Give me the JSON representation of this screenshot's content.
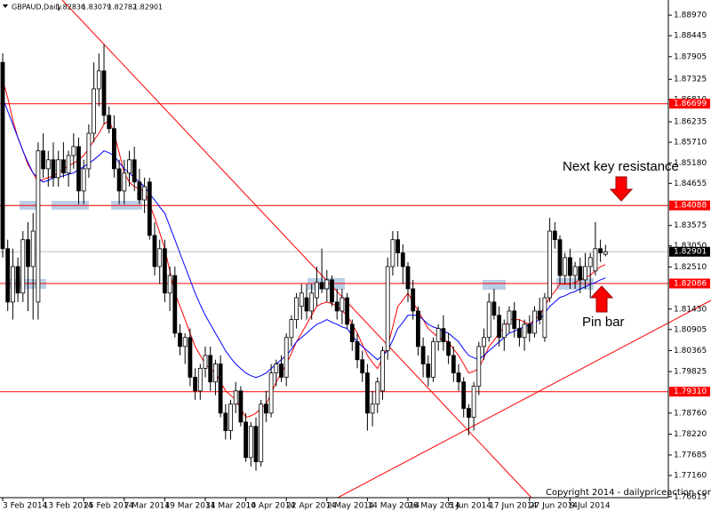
{
  "chart_data": {
    "type": "candlestick",
    "title": "GBPAUD,Daily",
    "categories": [
      "3 Feb 2014",
      null,
      null,
      null,
      null,
      null,
      null,
      null,
      "13 Feb 2014",
      null,
      null,
      null,
      null,
      null,
      null,
      null,
      "25 Feb 2014",
      null,
      null,
      null,
      null,
      null,
      null,
      null,
      "7 Mar 2014",
      null,
      null,
      null,
      null,
      null,
      null,
      null,
      "19 Mar 2014",
      null,
      null,
      null,
      null,
      null,
      null,
      null,
      "31 Mar 2014",
      null,
      null,
      null,
      null,
      null,
      null,
      null,
      "10 Apr 2014",
      null,
      null,
      null,
      null,
      null,
      null,
      null,
      "22 Apr 2014",
      null,
      null,
      null,
      null,
      null,
      null,
      null,
      "2 May 2014",
      null,
      null,
      null,
      null,
      null,
      null,
      null,
      "14 May 2014",
      null,
      null,
      null,
      null,
      null,
      null,
      null,
      "26 May 2014",
      null,
      null,
      null,
      null,
      null,
      null,
      null,
      "5 Jun 2014",
      null,
      null,
      null,
      null,
      null,
      null,
      null,
      "17 Jun 2014",
      null,
      null,
      null,
      null,
      null,
      null,
      null,
      "27 Jun 2014",
      null,
      null,
      null,
      null,
      null,
      null,
      null,
      "9 Jul 2014",
      null,
      null,
      null,
      null,
      null,
      null,
      null
    ],
    "candles": [
      [
        1.8776,
        1.8799,
        1.8275,
        1.8298
      ],
      [
        1.8298,
        1.8321,
        1.8138,
        1.8161
      ],
      [
        1.8161,
        1.8298,
        1.8116,
        1.8252
      ],
      [
        1.8252,
        1.8275,
        1.8161,
        1.8184
      ],
      [
        1.8184,
        1.8343,
        1.8161,
        1.8321
      ],
      [
        1.8321,
        1.8366,
        1.8138,
        1.8252
      ],
      [
        1.8252,
        1.8389,
        1.8116,
        1.8343
      ],
      [
        1.8161,
        1.8571,
        1.8116,
        1.8549
      ],
      [
        1.8549,
        1.8594,
        1.848,
        1.8503
      ],
      [
        1.8503,
        1.8549,
        1.8457,
        1.8526
      ],
      [
        1.8526,
        1.8571,
        1.8457,
        1.848
      ],
      [
        1.848,
        1.8549,
        1.8457,
        1.8526
      ],
      [
        1.8526,
        1.8571,
        1.848,
        1.8492
      ],
      [
        1.8492,
        1.8549,
        1.8457,
        1.8537
      ],
      [
        1.8537,
        1.8594,
        1.8503,
        1.856
      ],
      [
        1.856,
        1.8583,
        1.8412,
        1.8446
      ],
      [
        1.8446,
        1.8526,
        1.8412,
        1.8503
      ],
      [
        1.8503,
        1.8617,
        1.848,
        1.8594
      ],
      [
        1.8594,
        1.8776,
        1.8571,
        1.8708
      ],
      [
        1.8708,
        1.8799,
        1.8663,
        1.8754
      ],
      [
        1.8754,
        1.8822,
        1.8617,
        1.864
      ],
      [
        1.864,
        1.8663,
        1.8594,
        1.8606
      ],
      [
        1.8606,
        1.864,
        1.848,
        1.8503
      ],
      [
        1.8503,
        1.8526,
        1.8412,
        1.8446
      ],
      [
        1.8446,
        1.8526,
        1.8412,
        1.8492
      ],
      [
        1.8492,
        1.8549,
        1.8457,
        1.8526
      ],
      [
        1.8526,
        1.856,
        1.8446,
        1.8469
      ],
      [
        1.8469,
        1.8503,
        1.8412,
        1.8423
      ],
      [
        1.8423,
        1.848,
        1.8389,
        1.8457
      ],
      [
        1.8469,
        1.848,
        1.8321,
        1.8332
      ],
      [
        1.8332,
        1.8366,
        1.8229,
        1.8252
      ],
      [
        1.8252,
        1.8321,
        1.8207,
        1.8298
      ],
      [
        1.8298,
        1.8321,
        1.8161,
        1.8184
      ],
      [
        1.8184,
        1.8252,
        1.8138,
        1.8229
      ],
      [
        1.8229,
        1.8252,
        1.807,
        1.8081
      ],
      [
        1.8081,
        1.8104,
        1.8024,
        1.8047
      ],
      [
        1.8047,
        1.8081,
        1.8002,
        1.807
      ],
      [
        1.807,
        1.8093,
        1.7945,
        1.7968
      ],
      [
        1.7968,
        1.7991,
        1.791,
        1.7933
      ],
      [
        1.7933,
        1.8002,
        1.791,
        1.7991
      ],
      [
        1.7991,
        1.8047,
        1.7968,
        1.8024
      ],
      [
        1.8024,
        1.8047,
        1.7933,
        1.7956
      ],
      [
        1.7956,
        1.8013,
        1.7922,
        1.8002
      ],
      [
        1.8002,
        1.8024,
        1.7865,
        1.7876
      ],
      [
        1.7876,
        1.7899,
        1.7808,
        1.7831
      ],
      [
        1.7831,
        1.791,
        1.7808,
        1.7899
      ],
      [
        1.7899,
        1.7956,
        1.7876,
        1.7933
      ],
      [
        1.7933,
        1.7945,
        1.7842,
        1.7853
      ],
      [
        1.7853,
        1.7876,
        1.7751,
        1.7762
      ],
      [
        1.7762,
        1.7853,
        1.7739,
        1.7842
      ],
      [
        1.7842,
        1.7865,
        1.7728,
        1.7751
      ],
      [
        1.7751,
        1.791,
        1.7739,
        1.7899
      ],
      [
        1.7899,
        1.7933,
        1.7853,
        1.7876
      ],
      [
        1.7876,
        1.8002,
        1.7865,
        1.7979
      ],
      [
        1.7979,
        1.8013,
        1.7945,
        1.8002
      ],
      [
        1.8002,
        1.8024,
        1.7956,
        1.7968
      ],
      [
        1.7968,
        1.8081,
        1.7945,
        1.807
      ],
      [
        1.807,
        1.8127,
        1.8047,
        1.8116
      ],
      [
        1.8116,
        1.8184,
        1.8093,
        1.8172
      ],
      [
        1.815,
        1.8207,
        1.8116,
        1.8184
      ],
      [
        1.8172,
        1.8207,
        1.8116,
        1.8138
      ],
      [
        1.8138,
        1.8207,
        1.8116,
        1.8184
      ],
      [
        1.8172,
        1.8252,
        1.815,
        1.8211
      ],
      [
        1.8211,
        1.8298,
        1.8184,
        1.8195
      ],
      [
        1.8195,
        1.8243,
        1.8161,
        1.8218
      ],
      [
        1.8218,
        1.8229,
        1.815,
        1.8161
      ],
      [
        1.8161,
        1.8195,
        1.8116,
        1.8138
      ],
      [
        1.8138,
        1.8195,
        1.8104,
        1.8172
      ],
      [
        1.8172,
        1.8184,
        1.8093,
        1.8104
      ],
      [
        1.8104,
        1.8116,
        1.8036,
        1.8059
      ],
      [
        1.8059,
        1.8081,
        1.7991,
        1.8013
      ],
      [
        1.8013,
        1.8036,
        1.7956,
        1.7979
      ],
      [
        1.7979,
        1.8002,
        1.7831,
        1.7876
      ],
      [
        1.7876,
        1.7933,
        1.7842,
        1.7899
      ],
      [
        1.7899,
        1.7968,
        1.7876,
        1.7956
      ],
      [
        1.7933,
        1.8047,
        1.791,
        1.8036
      ],
      [
        1.8036,
        1.8275,
        1.8013,
        1.8252
      ],
      [
        1.8252,
        1.8343,
        1.8229,
        1.8321
      ],
      [
        1.8321,
        1.8343,
        1.8252,
        1.8287
      ],
      [
        1.8287,
        1.8309,
        1.8207,
        1.8252
      ],
      [
        1.8252,
        1.8264,
        1.8161,
        1.8195
      ],
      [
        1.8195,
        1.8218,
        1.8116,
        1.8138
      ],
      [
        1.8138,
        1.815,
        1.8024,
        1.8047
      ],
      [
        1.8047,
        1.807,
        1.7968,
        1.8002
      ],
      [
        1.8002,
        1.8024,
        1.7945,
        1.7968
      ],
      [
        1.7968,
        1.807,
        1.7956,
        1.8059
      ],
      [
        1.8059,
        1.8104,
        1.8036,
        1.8093
      ],
      [
        1.8093,
        1.8127,
        1.8036,
        1.8059
      ],
      [
        1.8059,
        1.8081,
        1.8002,
        1.8024
      ],
      [
        1.8024,
        1.8047,
        1.7956,
        1.7979
      ],
      [
        1.7979,
        1.8002,
        1.7933,
        1.7956
      ],
      [
        1.7956,
        1.7968,
        1.7865,
        1.7888
      ],
      [
        1.7888,
        1.7899,
        1.7819,
        1.7865
      ],
      [
        1.7865,
        1.7956,
        1.7831,
        1.7945
      ],
      [
        1.7945,
        1.8059,
        1.7922,
        1.8047
      ],
      [
        1.8047,
        1.8093,
        1.8013,
        1.807
      ],
      [
        1.807,
        1.8184,
        1.8059,
        1.8161
      ],
      [
        1.8161,
        1.8195,
        1.8116,
        1.8127
      ],
      [
        1.8127,
        1.815,
        1.8047,
        1.807
      ],
      [
        1.807,
        1.8116,
        1.8036,
        1.8104
      ],
      [
        1.8104,
        1.815,
        1.8081,
        1.8138
      ],
      [
        1.8138,
        1.8161,
        1.807,
        1.8093
      ],
      [
        1.8093,
        1.8116,
        1.8047,
        1.807
      ],
      [
        1.807,
        1.8116,
        1.8036,
        1.8104
      ],
      [
        1.8104,
        1.8127,
        1.8059,
        1.8081
      ],
      [
        1.8081,
        1.815,
        1.807,
        1.8138
      ],
      [
        1.8138,
        1.8172,
        1.8104,
        1.8116
      ],
      [
        1.807,
        1.8184,
        1.8059,
        1.8172
      ],
      [
        1.8172,
        1.8377,
        1.8161,
        1.8343
      ],
      [
        1.8343,
        1.8366,
        1.8298,
        1.8321
      ],
      [
        1.8321,
        1.8332,
        1.8207,
        1.8229
      ],
      [
        1.8229,
        1.8287,
        1.8207,
        1.8275
      ],
      [
        1.8275,
        1.8298,
        1.8195,
        1.8229
      ],
      [
        1.8229,
        1.8264,
        1.8195,
        1.8252
      ],
      [
        1.8252,
        1.8275,
        1.8184,
        1.8218
      ],
      [
        1.8218,
        1.8287,
        1.8195,
        1.8252
      ],
      [
        1.8252,
        1.8287,
        1.8172,
        1.8275
      ],
      [
        1.8241,
        1.8366,
        1.8229,
        1.8298
      ],
      [
        1.8298,
        1.8321,
        1.8264,
        1.8287
      ],
      [
        1.82836,
        1.83079,
        1.82782,
        1.82901
      ]
    ],
    "series": [
      {
        "color": "#ff0000",
        "values": [
          1.8731,
          1.8685,
          1.8628,
          1.8583,
          1.8549,
          1.8514,
          1.8492,
          1.8469,
          1.8476,
          1.848,
          1.8485,
          1.8492,
          1.8503,
          1.851,
          1.8517,
          1.8526,
          1.8537,
          1.8555,
          1.8576,
          1.8594,
          1.8617,
          1.8628,
          1.8594,
          1.8544,
          1.8492,
          1.8469,
          1.8457,
          1.8451,
          1.8446,
          1.8412,
          1.8378,
          1.8339,
          1.8298,
          1.8241,
          1.8184,
          1.815,
          1.8116,
          1.8081,
          1.8047,
          1.8024,
          1.8002,
          1.799,
          1.7979,
          1.7956,
          1.7933,
          1.7922,
          1.791,
          1.7888,
          1.7865,
          1.7869,
          1.7876,
          1.7888,
          1.7899,
          1.7926,
          1.7956,
          1.7979,
          1.8002,
          1.8029,
          1.8059,
          1.8081,
          1.8104,
          1.8127,
          1.815,
          1.8157,
          1.8161,
          1.8157,
          1.815,
          1.8138,
          1.8127,
          1.8104,
          1.8081,
          1.8052,
          1.8024,
          1.8006,
          1.799,
          1.8018,
          1.8047,
          1.8097,
          1.815,
          1.8166,
          1.8184,
          1.8161,
          1.8138,
          1.8116,
          1.8093,
          1.8081,
          1.807,
          1.8063,
          1.8059,
          1.804,
          1.8024,
          1.8002,
          1.7979,
          1.7983,
          1.799,
          1.8018,
          1.8047,
          1.8063,
          1.8081,
          1.8097,
          1.8116,
          1.8116,
          1.8116,
          1.8109,
          1.8104,
          1.8116,
          1.8127,
          1.815,
          1.8173,
          1.8188,
          1.8207,
          1.8207,
          1.8207,
          1.8211,
          1.8218,
          1.8223,
          1.823,
          1.8241,
          1.8252,
          1.8257
        ]
      },
      {
        "color": "#0000ff",
        "values": [
          1.8685,
          1.8651,
          1.8617,
          1.8583,
          1.8549,
          1.8519,
          1.8492,
          1.848,
          1.8469,
          1.8473,
          1.848,
          1.8482,
          1.8485,
          1.8489,
          1.8492,
          1.8501,
          1.8508,
          1.8517,
          1.8526,
          1.8537,
          1.8549,
          1.8544,
          1.8537,
          1.8519,
          1.8503,
          1.8492,
          1.848,
          1.8469,
          1.8457,
          1.8439,
          1.8423,
          1.8405,
          1.8389,
          1.8355,
          1.8321,
          1.8286,
          1.8252,
          1.8218,
          1.8184,
          1.8154,
          1.8127,
          1.8104,
          1.8081,
          1.8059,
          1.8036,
          1.8018,
          1.8002,
          1.799,
          1.7979,
          1.7972,
          1.7967,
          1.7972,
          1.7979,
          1.799,
          1.8002,
          1.8013,
          1.8024,
          1.804,
          1.8059,
          1.807,
          1.8081,
          1.8093,
          1.8104,
          1.8109,
          1.8116,
          1.8109,
          1.8104,
          1.8097,
          1.8093,
          1.8075,
          1.8059,
          1.8047,
          1.8036,
          1.8024,
          1.8013,
          1.8024,
          1.8036,
          1.8063,
          1.8093,
          1.8109,
          1.8127,
          1.8127,
          1.8127,
          1.8116,
          1.8104,
          1.8097,
          1.8093,
          1.8086,
          1.8081,
          1.807,
          1.8059,
          1.804,
          1.8024,
          1.8018,
          1.8013,
          1.8024,
          1.8036,
          1.8047,
          1.8059,
          1.807,
          1.8081,
          1.8086,
          1.8093,
          1.8097,
          1.8104,
          1.8109,
          1.8116,
          1.8132,
          1.815,
          1.8161,
          1.8173,
          1.8177,
          1.8184,
          1.8188,
          1.8195,
          1.82,
          1.8207,
          1.8211,
          1.8218,
          1.8223
        ]
      }
    ],
    "ylim": [
      1.7659,
      1.8936
    ],
    "yticks": [
      {
        "value": 1.8897,
        "label": "1.88970"
      },
      {
        "value": 1.88445,
        "label": "1.88445"
      },
      {
        "value": 1.87905,
        "label": "1.87905"
      },
      {
        "value": 1.87325,
        "label": "1.87325"
      },
      {
        "value": 1.8681,
        "label": "1.86810"
      },
      {
        "value": 1.86235,
        "label": "1.86235"
      },
      {
        "value": 1.8571,
        "label": "1.85710"
      },
      {
        "value": 1.8518,
        "label": "1.85180"
      },
      {
        "value": 1.84655,
        "label": "1.84655"
      },
      {
        "value": 1.83575,
        "label": "1.83575"
      },
      {
        "value": 1.8305,
        "label": "1.83050"
      },
      {
        "value": 1.8251,
        "label": "1.82510"
      },
      {
        "value": 1.8143,
        "label": "1.81430"
      },
      {
        "value": 1.80905,
        "label": "1.80905"
      },
      {
        "value": 1.80365,
        "label": "1.80365"
      },
      {
        "value": 1.79825,
        "label": "1.79825"
      },
      {
        "value": 1.7876,
        "label": "1.78760"
      },
      {
        "value": 1.7822,
        "label": "1.78220"
      },
      {
        "value": 1.77685,
        "label": "1.77685"
      },
      {
        "value": 1.7716,
        "label": "1.77160"
      },
      {
        "value": 1.76615,
        "label": "1.76615"
      }
    ],
    "levels": [
      {
        "value": 1.86699,
        "color": "#ff0000",
        "box": "#ff0000"
      },
      {
        "value": 1.84088,
        "color": "#ff0000",
        "box": "#ff0000"
      },
      {
        "value": 1.82901,
        "color": "#c0c0c0",
        "box": "#000000"
      },
      {
        "value": 1.82086,
        "color": "#ff0000",
        "box": "#ff0000"
      },
      {
        "value": 1.7931,
        "label": "1.79310",
        "color": "#ff0000",
        "box": "#ff0000"
      }
    ],
    "bull_color": "#ffffff",
    "bear_color": "#000000",
    "annotations": [
      "Next key resistance",
      "Pin bar"
    ],
    "footer": "Copyright 2014 - dailypriceaction.com"
  }
}
